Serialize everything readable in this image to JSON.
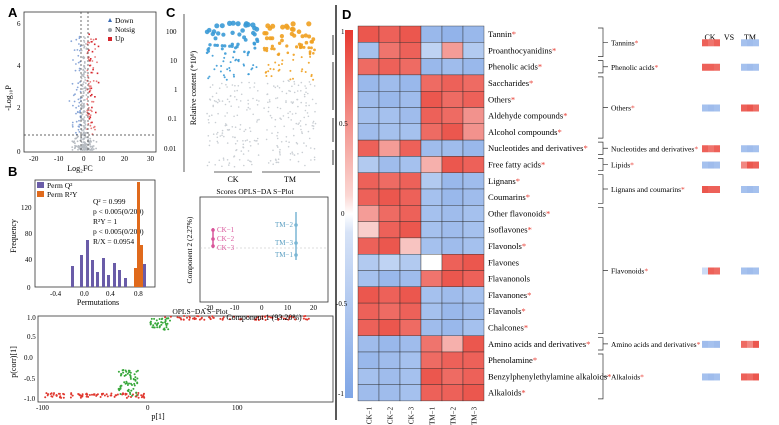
{
  "panels": {
    "a": {
      "label": "A",
      "xlabel": "Log₂FC",
      "ylabel": "-Log₁₀P",
      "legend": [
        {
          "name": "Down",
          "color": "#3a6bb5",
          "marker": "triangle"
        },
        {
          "name": "Notsig",
          "color": "#9aa0a6",
          "marker": "dot"
        },
        {
          "name": "Up",
          "color": "#d6262d",
          "marker": "square"
        }
      ],
      "xticks": [
        "-20",
        "-10",
        "0",
        "10",
        "20",
        "30"
      ],
      "yticks": [
        "0",
        "2",
        "4",
        "6"
      ]
    },
    "b": {
      "label": "B",
      "legend": [
        {
          "name": "Perm Q²",
          "color": "#6a5ca8"
        },
        {
          "name": "Perm R²Y",
          "color": "#e06a1c"
        }
      ],
      "stats": [
        "Q² = 0.999",
        "p < 0.005(0/200)",
        "R²Y = 1",
        "p < 0.005(0/200)",
        "R/X = 0.0954"
      ],
      "xlabel": "Permutations",
      "ylabel": "Frequency",
      "xticks": [
        "-0.4",
        "0.0",
        "0.4",
        "0.8"
      ],
      "yticks": [
        "0",
        "40",
        "80",
        "120"
      ],
      "splot": {
        "title": "OPLS−DA S−Plot",
        "xlabel": "p[1]",
        "ylabel": "p(corr)[1]",
        "xticks": [
          "-100",
          "0",
          "100"
        ],
        "yticks": [
          "-1.0",
          "-0.5",
          "0.0",
          "0.5",
          "1.0"
        ]
      }
    },
    "c": {
      "label": "C",
      "ylabel": "Relative content (*10⁹)",
      "yticks": [
        "100",
        "10",
        "1",
        "0.1",
        "0.01"
      ],
      "groups": [
        {
          "name": "CK",
          "color": "#3a9ad6"
        },
        {
          "name": "TM",
          "color": "#f0a020"
        }
      ],
      "scores": {
        "title": "Scores OPLS−DA S−Plot",
        "xlabel": "Component 1 (93.20%)",
        "ylabel": "Component 2 (2.27%)",
        "xticks": [
          "-20",
          "-10",
          "0",
          "10",
          "20"
        ],
        "points_ck": [
          "CK−1",
          "CK−2",
          "CK−3"
        ],
        "points_tm": [
          "TM−2",
          "TM−3",
          "TM−1"
        ]
      }
    },
    "d": {
      "label": "D",
      "colorbar_ticks": [
        "1",
        "0.5",
        "0",
        "-0.5",
        "-1"
      ],
      "columns": [
        "CK−1",
        "CK−2",
        "CK−3",
        "TM−1",
        "TM−2",
        "TM−3"
      ],
      "rows": [
        {
          "name": "Tannin",
          "star": "*"
        },
        {
          "name": "Proanthocyanidins",
          "star": "*"
        },
        {
          "name": "Phenolic acids",
          "star": "*"
        },
        {
          "name": "Saccharides",
          "star": "*"
        },
        {
          "name": "Others",
          "star": "*"
        },
        {
          "name": "Aldehyde compounds",
          "star": "*"
        },
        {
          "name": "Alcohol compounds",
          "star": "*"
        },
        {
          "name": "Nucleotides and derivatives",
          "star": "*"
        },
        {
          "name": "Free fatty acids",
          "star": "*"
        },
        {
          "name": "Lignans",
          "star": "*"
        },
        {
          "name": "Coumarins",
          "star": "*"
        },
        {
          "name": "Other flavonoids",
          "star": "*"
        },
        {
          "name": "Isoflavones",
          "star": "*"
        },
        {
          "name": "Flavonols",
          "star": "*"
        },
        {
          "name": "Flavones",
          "star": ""
        },
        {
          "name": "Flavanonols",
          "star": ""
        },
        {
          "name": "Flavanones",
          "star": "*"
        },
        {
          "name": "Flavanols",
          "star": "*"
        },
        {
          "name": "Chalcones",
          "star": "*"
        },
        {
          "name": "Amino acids and derivatives",
          "star": "*"
        },
        {
          "name": "Phenolamine",
          "star": "*"
        },
        {
          "name": "Benzylphenylethylamine alkaloids",
          "star": "*"
        },
        {
          "name": "Alkaloids",
          "star": "*"
        }
      ],
      "heatmap": [
        [
          0.85,
          0.8,
          0.85,
          -0.8,
          -0.85,
          -0.8
        ],
        [
          -0.7,
          0.7,
          0.8,
          -0.5,
          0.5,
          -0.6
        ],
        [
          0.75,
          0.8,
          0.75,
          -0.8,
          -0.75,
          -0.8
        ],
        [
          -0.8,
          -0.75,
          -0.8,
          0.75,
          0.8,
          0.75
        ],
        [
          -0.75,
          -0.8,
          -0.75,
          0.85,
          0.75,
          0.8
        ],
        [
          -0.7,
          -0.7,
          -0.75,
          0.8,
          0.75,
          0.55
        ],
        [
          -0.75,
          -0.7,
          -0.7,
          0.75,
          0.85,
          0.55
        ],
        [
          0.8,
          0.5,
          0.8,
          -0.75,
          -0.75,
          -0.8
        ],
        [
          -0.6,
          -0.75,
          -0.7,
          0.4,
          0.85,
          0.8
        ],
        [
          0.8,
          0.75,
          0.8,
          -0.6,
          -0.8,
          -0.75
        ],
        [
          0.8,
          0.85,
          0.8,
          -0.7,
          -0.8,
          -0.75
        ],
        [
          0.5,
          0.75,
          0.8,
          -0.7,
          -0.75,
          -0.7
        ],
        [
          0.25,
          0.8,
          0.85,
          -0.7,
          -0.75,
          -0.7
        ],
        [
          0.8,
          0.85,
          0.3,
          -0.7,
          -0.75,
          -0.7
        ],
        [
          -0.6,
          -0.5,
          -0.6,
          0.0,
          0.8,
          0.85
        ],
        [
          -0.7,
          -0.8,
          -0.75,
          0.7,
          0.85,
          0.8
        ],
        [
          0.85,
          0.8,
          0.85,
          -0.7,
          -0.75,
          -0.7
        ],
        [
          0.8,
          0.75,
          0.8,
          -0.7,
          -0.8,
          -0.75
        ],
        [
          0.8,
          0.85,
          0.75,
          -0.75,
          -0.8,
          -0.7
        ],
        [
          -0.75,
          -0.8,
          -0.75,
          0.7,
          0.4,
          0.85
        ],
        [
          -0.8,
          -0.75,
          -0.7,
          0.75,
          0.8,
          0.8
        ],
        [
          -0.7,
          -0.75,
          -0.7,
          0.85,
          0.75,
          0.8
        ],
        [
          -0.75,
          -0.75,
          -0.7,
          0.8,
          0.8,
          0.85
        ]
      ],
      "summary_header": {
        "ck": "CK",
        "vs": "VS",
        "tm": "TM"
      },
      "summary": [
        {
          "name": "Tannins",
          "star": "*",
          "ck": [
            0.8,
            0.7,
            0.8
          ],
          "tm": [
            -0.7,
            -0.75,
            -0.7
          ]
        },
        {
          "name": "Phenolic acids",
          "star": "*",
          "ck": [
            0.8,
            0.8,
            0.75
          ],
          "tm": [
            -0.7,
            -0.75,
            -0.7
          ]
        },
        {
          "name": "Others",
          "star": "*",
          "ck": [
            -0.7,
            -0.75,
            -0.7
          ],
          "tm": [
            0.8,
            0.85,
            0.75
          ]
        },
        {
          "name": "Nucleotides and derivatives",
          "star": "*",
          "ck": [
            0.8,
            0.7,
            0.8
          ],
          "tm": [
            -0.7,
            -0.75,
            -0.7
          ]
        },
        {
          "name": "Lipids",
          "star": "*",
          "ck": [
            -0.7,
            -0.75,
            -0.7
          ],
          "tm": [
            0.6,
            0.85,
            0.8
          ]
        },
        {
          "name": "Lignans and coumarins",
          "star": "*",
          "ck": [
            0.85,
            0.8,
            0.8
          ],
          "tm": [
            -0.7,
            -0.75,
            -0.7
          ]
        },
        {
          "name": "Flavonoids",
          "star": "*",
          "ck": [
            -0.4,
            0.8,
            0.75
          ],
          "tm": [
            -0.7,
            -0.75,
            -0.7
          ]
        },
        {
          "name": "Amino acids and derivatives",
          "star": "*",
          "ck": [
            -0.75,
            -0.7,
            -0.75
          ],
          "tm": [
            0.75,
            0.6,
            0.85
          ]
        },
        {
          "name": "Alkaloids",
          "star": "*",
          "ck": [
            -0.7,
            -0.75,
            -0.7
          ],
          "tm": [
            0.8,
            0.75,
            0.85
          ]
        }
      ]
    }
  },
  "colors": {
    "red": "#e8392f",
    "blue": "#7fa6e6",
    "white": "#ffffff"
  }
}
